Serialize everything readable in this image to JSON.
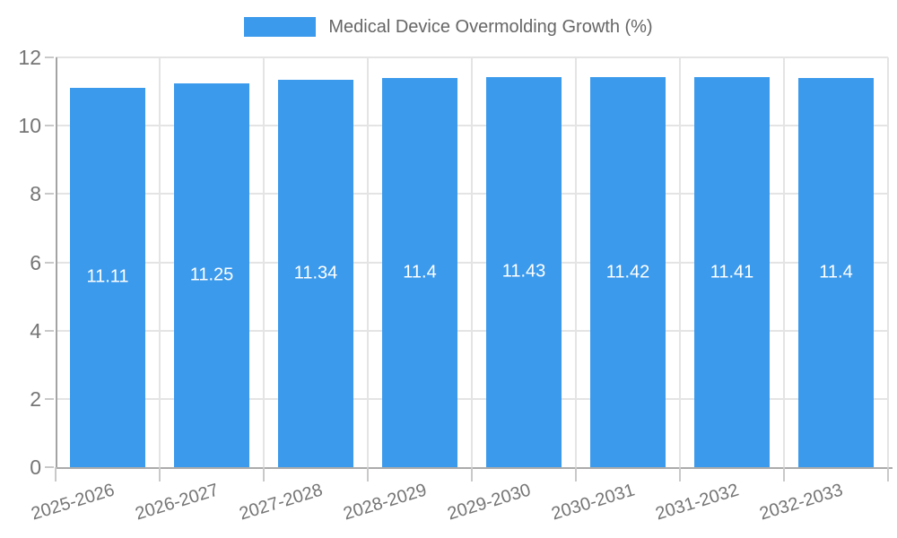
{
  "chart_data": {
    "type": "bar",
    "legend_label": "Medical Device Overmolding Growth (%)",
    "legend_position": "top",
    "categories": [
      "2025-2026",
      "2026-2027",
      "2027-2028",
      "2028-2029",
      "2029-2030",
      "2030-2031",
      "2031-2032",
      "2032-2033"
    ],
    "values": [
      11.11,
      11.25,
      11.34,
      11.4,
      11.43,
      11.42,
      11.41,
      11.4
    ],
    "bar_value_labels": [
      "11.11",
      "11.25",
      "11.34",
      "11.4",
      "11.43",
      "11.42",
      "11.41",
      "11.4"
    ],
    "ylim": [
      0,
      12
    ],
    "yticks": [
      0,
      2,
      4,
      6,
      8,
      10,
      12
    ],
    "grid": true,
    "x_label_rotation_deg": -17,
    "colors": {
      "bar": "#3B9AEC",
      "grid": "#E4E4E4",
      "baseline": "#ABABAB",
      "y_axis_line": "#A3A3A3",
      "tick_mark": "#C9C9C9",
      "tick_text": "#757575",
      "bar_label_text": "#FFFFFF",
      "legend_text": "#666666",
      "background": "#FFFFFF"
    }
  }
}
